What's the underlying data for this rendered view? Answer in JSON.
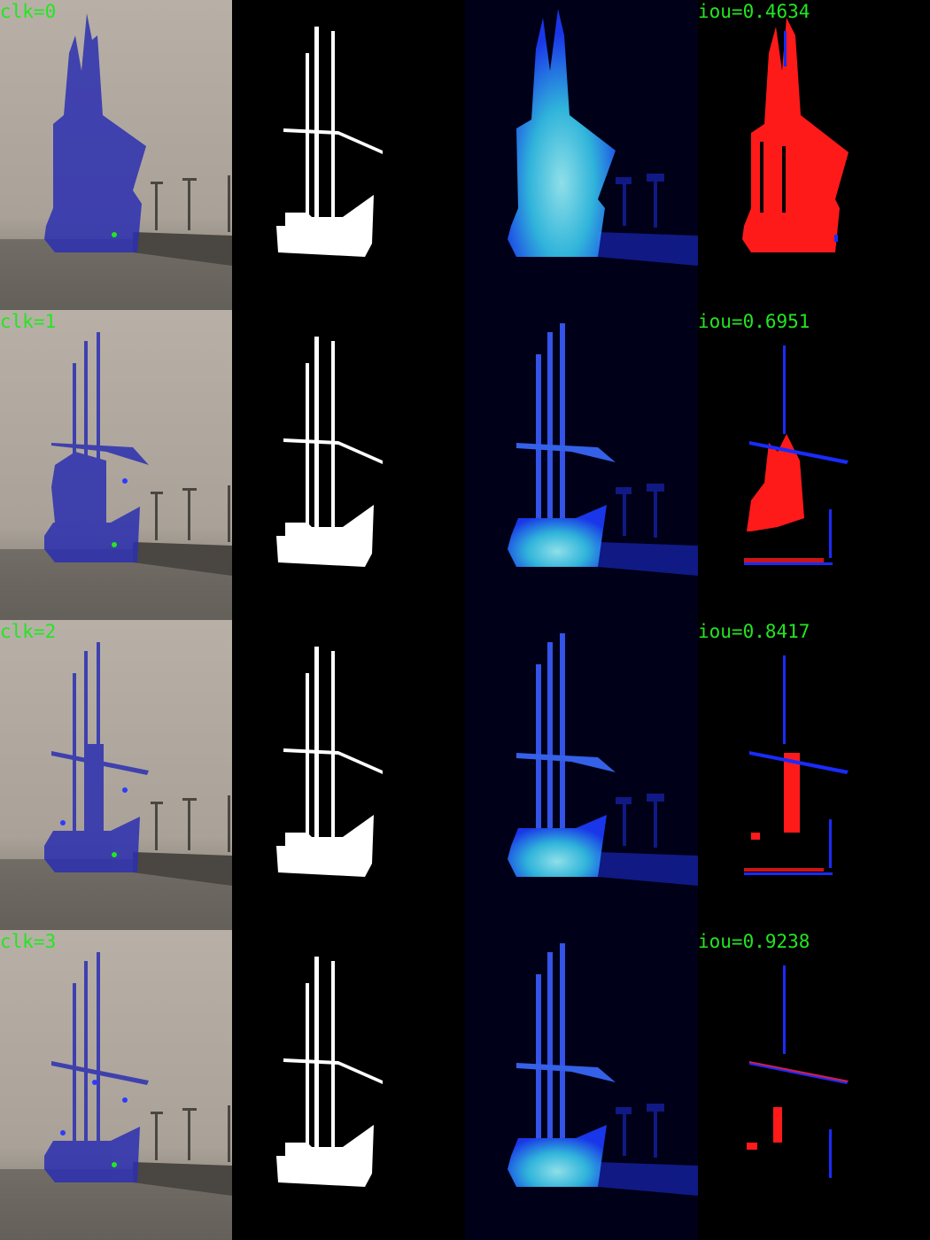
{
  "rows": [
    {
      "click_label": "clk=0",
      "iou_label": "iou=0.4634"
    },
    {
      "click_label": "clk=1",
      "iou_label": "iou=0.6951"
    },
    {
      "click_label": "clk=2",
      "iou_label": "iou=0.8417"
    },
    {
      "click_label": "clk=3",
      "iou_label": "iou=0.9238"
    }
  ],
  "colors": {
    "label": "#22e622",
    "overlay": "#2b2fb0",
    "positive_click": "#22e622",
    "negative_click": "#2d3bff",
    "ground_truth": "#ffffff",
    "false_negative": "#ff1a1a",
    "false_positive": "#1a2bff"
  }
}
